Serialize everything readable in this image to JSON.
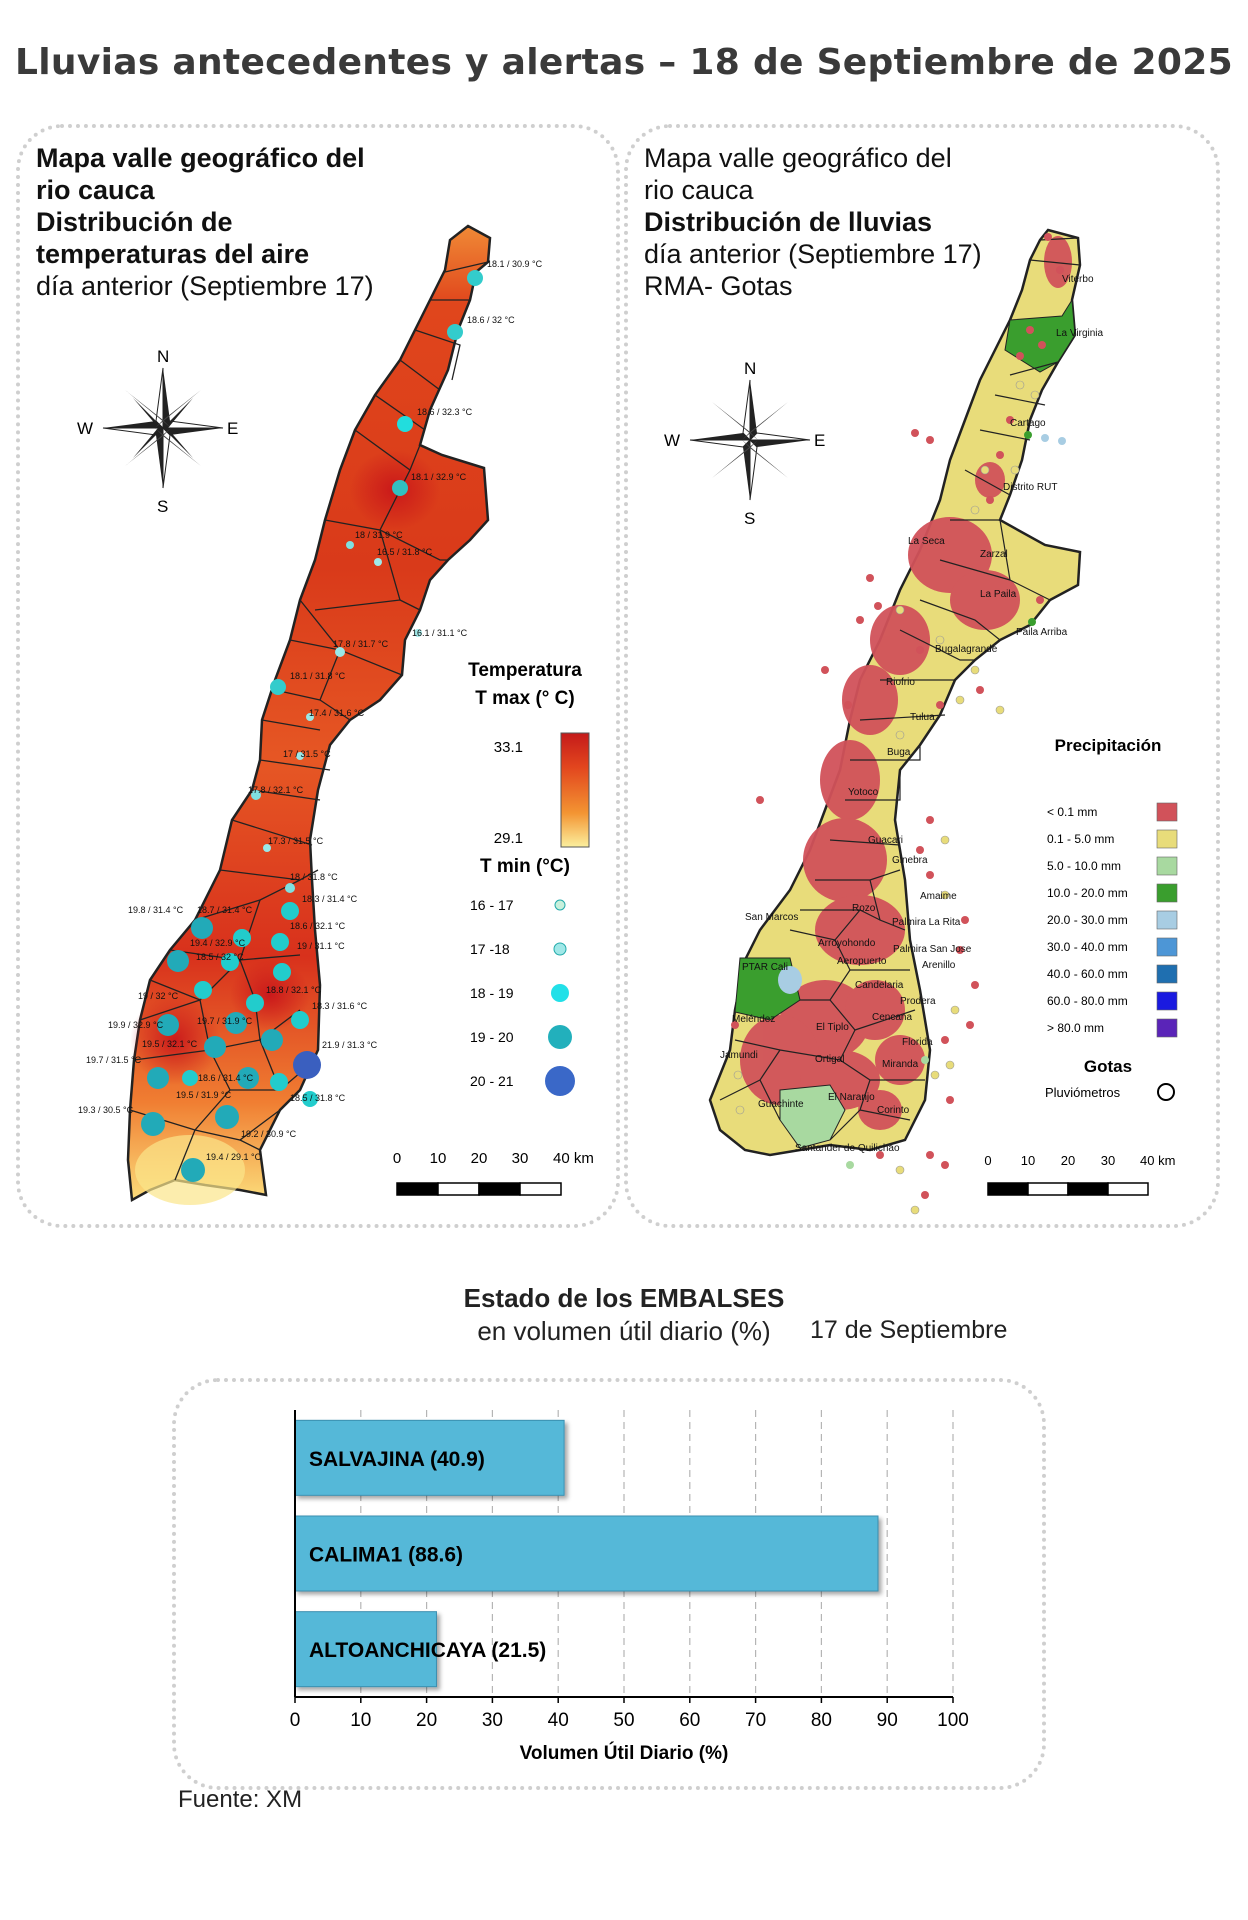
{
  "title": "Lluvias antecedentes y alertas – 18 de Septiembre de 2025",
  "temp_panel": {
    "line1": "Mapa valle geográfico del",
    "line2": "rio cauca",
    "line3": "Distribución de",
    "line4": "temperaturas del aire",
    "line5": "día anterior (Septiembre 17)",
    "legend_title_1": "Temperatura",
    "legend_title_2": "T max (° C)",
    "tmax_high": "33.1",
    "tmax_low": "29.1",
    "tmin_title": "T min (°C)",
    "tmin_classes": [
      "16 - 17",
      "17 -18",
      "18 - 19",
      "19 - 20",
      "20 - 21"
    ],
    "scale_labels": [
      "0",
      "10",
      "20",
      "30",
      "40 km"
    ],
    "stations": [
      "18.1 / 30.9 °C",
      "18.6 / 32 °C",
      "18.6 / 32.3 °C",
      "18.1 / 32.9 °C",
      "18 / 31.9 °C",
      "16.5 / 31.8 °C",
      "17.8 / 31.7 °C",
      "16.1 / 31.1 °C",
      "18.1 / 31.8 °C",
      "17.4 / 31.6 °C",
      "17 / 31.5 °C",
      "17.8 / 32.1 °C",
      "17.3 / 31.5 °C",
      "18 / 31.8 °C",
      "19.8 / 31.4 °C",
      "18.7 / 31.4 °C",
      "18.3 / 31.4 °C",
      "18.6 / 32.1 °C",
      "19.4 / 32.9 °C",
      "19 / 31.1 °C",
      "18.5 / 32 °C",
      "19 / 32 °C",
      "18.8 / 32.1 °C",
      "18.3 / 31.6 °C",
      "19.9 / 32.9 °C",
      "19.7 / 31.9 °C",
      "19.5 / 32.1 °C",
      "21.9 / 31.3 °C",
      "19.7 / 31.5 °C",
      "18.6 / 31.4 °C",
      "19.5 / 31.9 °C",
      "18.5 / 31.8 °C",
      "19.3 / 30.5 °C",
      "19.2 / 30.9 °C",
      "19.4 / 29.1 °C"
    ]
  },
  "rain_panel": {
    "line1": "Mapa valle geográfico del",
    "line2": "rio cauca",
    "line3": "Distribución de lluvias",
    "line4": "día anterior (Septiembre 17)",
    "line5": "RMA- Gotas",
    "legend_title": "Precipitación",
    "classes": [
      {
        "label": "< 0.1 mm",
        "color": "#d1525a"
      },
      {
        "label": "0.1 - 5.0 mm",
        "color": "#e8dc7a"
      },
      {
        "label": "5.0 - 10.0 mm",
        "color": "#a8d9a0"
      },
      {
        "label": "10.0 - 20.0 mm",
        "color": "#3a9e2e"
      },
      {
        "label": "20.0 - 30.0 mm",
        "color": "#a8cde3"
      },
      {
        "label": "30.0 - 40.0 mm",
        "color": "#4d96d6"
      },
      {
        "label": "40.0 - 60.0 mm",
        "color": "#1f6fb0"
      },
      {
        "label": "60.0 - 80.0 mm",
        "color": "#1a1ae0"
      },
      {
        "label": "> 80.0 mm",
        "color": "#5a24b8"
      }
    ],
    "gotas_title": "Gotas",
    "gotas_label": "Pluviómetros",
    "scale_labels": [
      "0",
      "10",
      "20",
      "30",
      "40 km"
    ],
    "places": [
      "Viterbo",
      "La Virginia",
      "Cartago",
      "Distrito RUT",
      "La Seca",
      "Zarzal",
      "La Paila",
      "Paila Arriba",
      "Bugalagrande",
      "Riofrio",
      "Tulua",
      "Buga",
      "Yotoco",
      "Guacari",
      "Ginebra",
      "San Marcos",
      "Amaime",
      "Rozo",
      "Palmira La Rita",
      "Arroyohondo",
      "Palmira San Jose",
      "Aeropuerto",
      "Arenillo",
      "PTAR Cali",
      "Candelaria",
      "Meléndez",
      "El Tiplo",
      "Cencana",
      "Prodera",
      "Jamundi",
      "Ortigal",
      "Florida",
      "Miranda",
      "El Naranjo",
      "Guachinte",
      "Corinto",
      "Santander de Quilichao"
    ]
  },
  "compass": {
    "n": "N",
    "s": "S",
    "e": "E",
    "w": "W"
  },
  "reservoirs": {
    "title_line1": "Estado de los EMBALSES",
    "title_line2": "en volumen útil diario (%)",
    "date": "17 de Septiembre",
    "source": "Fuente: XM"
  },
  "chart_data": {
    "type": "bar",
    "orientation": "horizontal",
    "categories": [
      "SALVAJINA (40.9)",
      "CALIMA1 (88.6)",
      "ALTOANCHICAYA (21.5)"
    ],
    "values": [
      40.9,
      88.6,
      21.5
    ],
    "xlabel": "Volumen Útil Diario (%)",
    "xlim": [
      0,
      100
    ],
    "xticks": [
      "0",
      "10",
      "20",
      "30",
      "40",
      "50",
      "60",
      "70",
      "80",
      "90",
      "100"
    ],
    "grid": "vertical dashed",
    "bar_color": "#55b8d8"
  }
}
